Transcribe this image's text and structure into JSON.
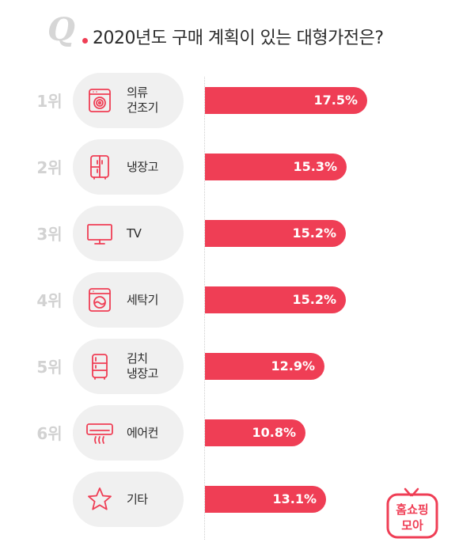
{
  "header": {
    "q_mark": "Q",
    "title": "2020년도 구매 계획이 있는 대형가전은?"
  },
  "chart_data": {
    "type": "bar",
    "orientation": "horizontal",
    "title": "2020년도 구매 계획이 있는 대형가전은?",
    "categories": [
      "의류 건조기",
      "냉장고",
      "TV",
      "세탁기",
      "김치 냉장고",
      "에어컨",
      "기타"
    ],
    "values": [
      17.5,
      15.3,
      15.2,
      15.2,
      12.9,
      10.8,
      13.1
    ],
    "unit": "%",
    "xlim": [
      0,
      20
    ],
    "grid": false,
    "legend": "none",
    "color": "#ef3e55",
    "items": [
      {
        "rank": "1위",
        "lines": [
          "의류",
          "건조기"
        ],
        "icon": "dryer-icon",
        "value": 17.5,
        "label": "17.5%"
      },
      {
        "rank": "2위",
        "lines": [
          "냉장고"
        ],
        "icon": "refrigerator-icon",
        "value": 15.3,
        "label": "15.3%"
      },
      {
        "rank": "3위",
        "lines": [
          "TV"
        ],
        "icon": "tv-icon",
        "value": 15.2,
        "label": "15.2%"
      },
      {
        "rank": "4위",
        "lines": [
          "세탁기"
        ],
        "icon": "washing-machine-icon",
        "value": 15.2,
        "label": "15.2%"
      },
      {
        "rank": "5위",
        "lines": [
          "김치",
          "냉장고"
        ],
        "icon": "kimchi-refrigerator-icon",
        "value": 12.9,
        "label": "12.9%"
      },
      {
        "rank": "6위",
        "lines": [
          "에어컨"
        ],
        "icon": "air-conditioner-icon",
        "value": 10.8,
        "label": "10.8%"
      },
      {
        "rank": "",
        "lines": [
          "기타"
        ],
        "icon": "star-icon",
        "value": 13.1,
        "label": "13.1%"
      }
    ]
  },
  "logo": {
    "line1": "홈쇼핑",
    "line2": "모아",
    "color": "#ef3e55"
  }
}
